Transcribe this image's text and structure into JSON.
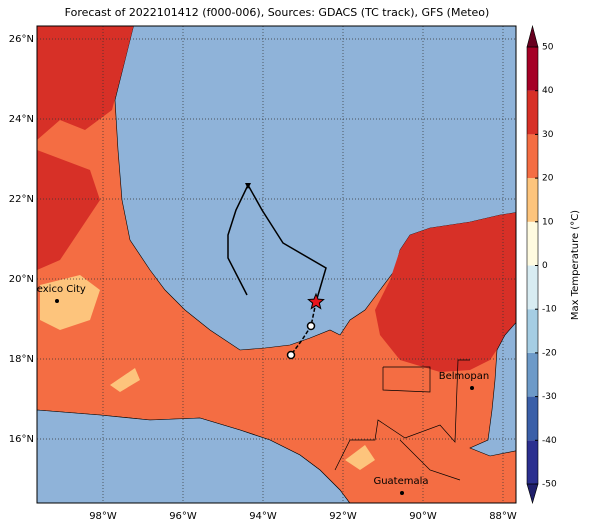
{
  "title": "Forecast of 2022101412 (f000-006), Sources: GDACS (TC track), GFS (Meteo)",
  "map": {
    "xlim": [
      -99.65,
      -87.675
    ],
    "ylim": [
      14.4,
      26.325
    ],
    "xticks": [
      {
        "value": -98,
        "label": "98°W"
      },
      {
        "value": -96,
        "label": "96°W"
      },
      {
        "value": -94,
        "label": "94°W"
      },
      {
        "value": -92,
        "label": "92°W"
      },
      {
        "value": -90,
        "label": "90°W"
      },
      {
        "value": -88,
        "label": "88°W"
      }
    ],
    "yticks": [
      {
        "value": 16,
        "label": "16°N"
      },
      {
        "value": 18,
        "label": "18°N"
      },
      {
        "value": 20,
        "label": "20°N"
      },
      {
        "value": 22,
        "label": "22°N"
      },
      {
        "value": 24,
        "label": "24°N"
      },
      {
        "value": 26,
        "label": "26°N"
      }
    ],
    "track": {
      "lon": [
        -94.4,
        -94.875,
        -94.875,
        -94.675,
        -94.375,
        -94.025,
        -93.5,
        -92.425,
        -92.675
      ],
      "lat": [
        19.6,
        20.525,
        21.1,
        21.725,
        22.35,
        21.725,
        20.9,
        20.275,
        19.425
      ]
    },
    "forecast_track": {
      "lon": [
        -92.675,
        -92.8,
        -93.025,
        -93.3
      ],
      "lat": [
        19.425,
        18.825,
        18.475,
        18.1
      ]
    },
    "cities": [
      {
        "name": "Mexico City",
        "lon": -99.15,
        "lat": 19.45
      },
      {
        "name": "Belmopan",
        "lon": -88.775,
        "lat": 17.275
      },
      {
        "name": "Guatemala",
        "lon": -90.525,
        "lat": 14.65
      }
    ]
  },
  "colorbar": {
    "label": "Max Temperature (°C)",
    "lim": [
      -50,
      50
    ],
    "ticks": [
      -50,
      -40,
      -30,
      -20,
      -10,
      0,
      10,
      20,
      30,
      40,
      50
    ],
    "colors": [
      "#2b2f8f",
      "#3a5fa8",
      "#6d9ac8",
      "#a5cde3",
      "#d8ecf2",
      "#fffbe0",
      "#fdc47c",
      "#f46d43",
      "#d73027",
      "#a50026"
    ],
    "under": "#1f1f6b",
    "over": "#67001f"
  }
}
